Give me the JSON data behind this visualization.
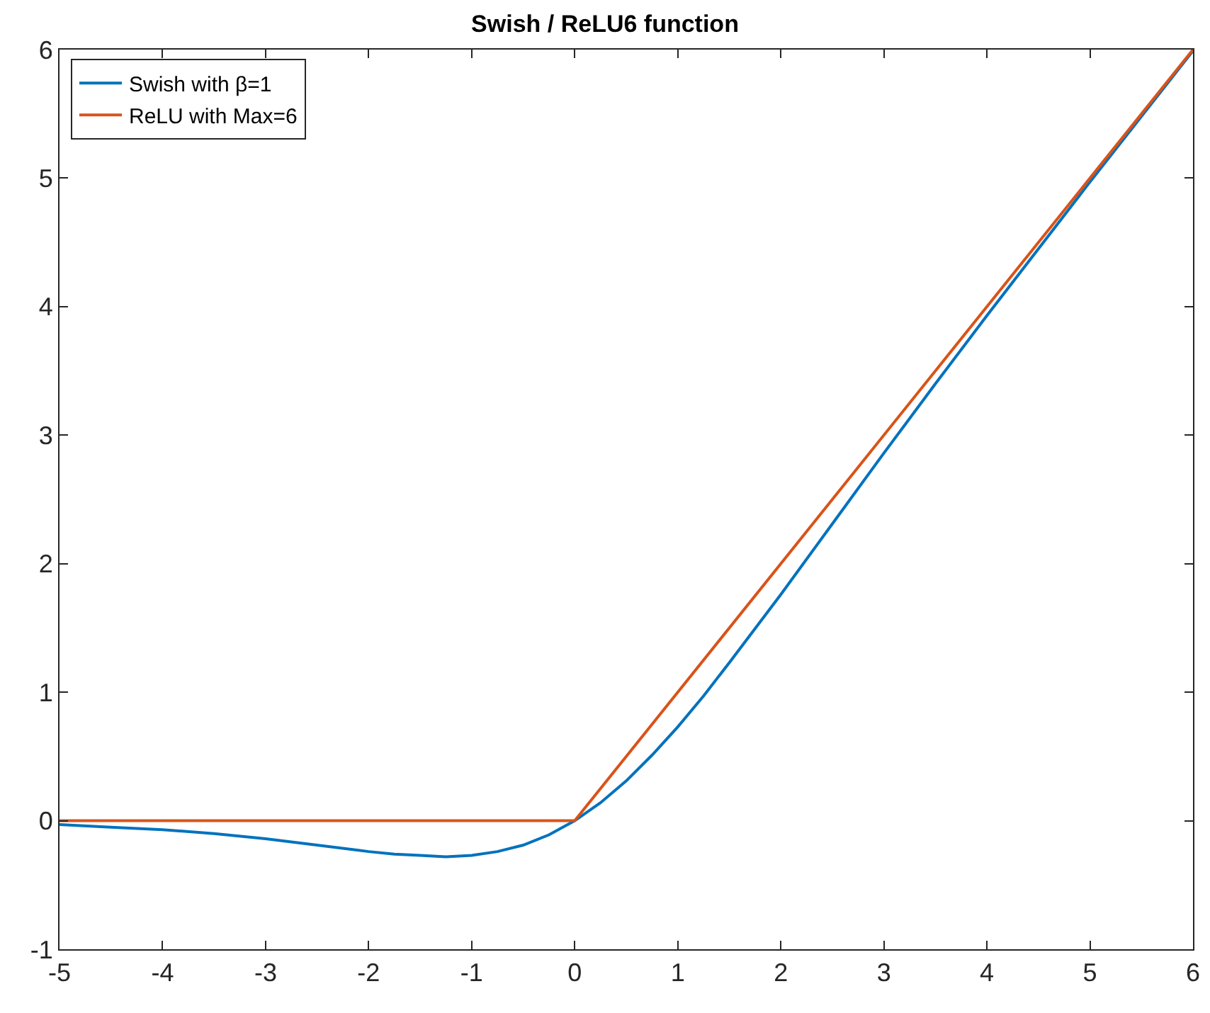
{
  "chart_data": {
    "type": "line",
    "title": "Swish / ReLU6 function",
    "xlim": [
      -5,
      6
    ],
    "xticks": [
      -5,
      -4,
      -3,
      -2,
      -1,
      0,
      1,
      2,
      3,
      4,
      5,
      6
    ],
    "ylim": [
      -1,
      6
    ],
    "yticks": [
      -1,
      0,
      1,
      2,
      3,
      4,
      5,
      6
    ],
    "grid": false,
    "legend": "top left",
    "marker": "none",
    "line_style": "solid",
    "series": [
      {
        "name": "Swish with β=1",
        "color": "#0072bd",
        "x": [
          -5,
          -4.5,
          -4,
          -3.5,
          -3,
          -2.5,
          -2,
          -1.75,
          -1.5,
          -1.25,
          -1,
          -0.75,
          -0.5,
          -0.25,
          0,
          0.25,
          0.5,
          0.75,
          1,
          1.25,
          1.5,
          2,
          2.5,
          3,
          3.5,
          4,
          4.5,
          5,
          5.5,
          6
        ],
        "values": [
          -0.03,
          -0.05,
          -0.07,
          -0.1,
          -0.14,
          -0.19,
          -0.24,
          -0.26,
          -0.27,
          -0.28,
          -0.27,
          -0.24,
          -0.19,
          -0.11,
          0,
          0.14,
          0.31,
          0.51,
          0.73,
          0.97,
          1.23,
          1.76,
          2.31,
          2.86,
          3.4,
          3.93,
          4.45,
          4.97,
          5.48,
          5.99
        ]
      },
      {
        "name": "ReLU with Max=6",
        "color": "#d95319",
        "x": [
          -5,
          0,
          6
        ],
        "values": [
          0,
          0,
          6
        ]
      }
    ]
  }
}
